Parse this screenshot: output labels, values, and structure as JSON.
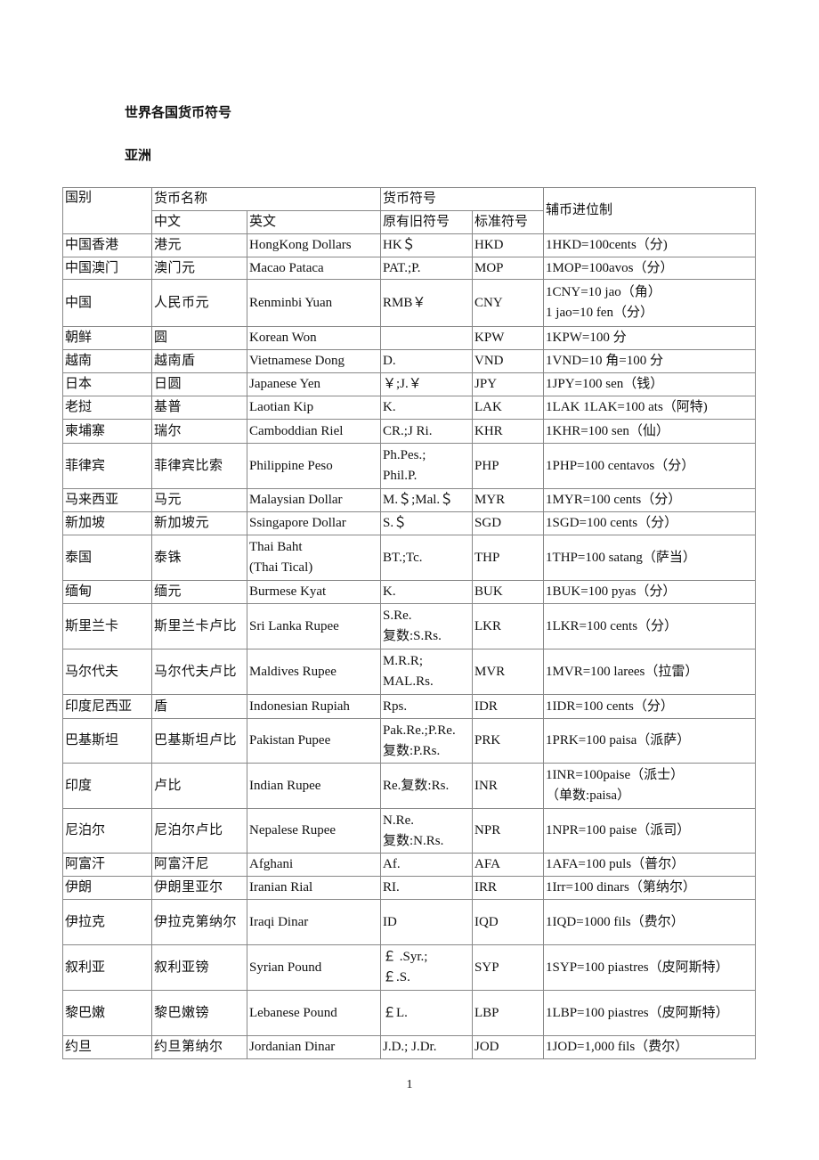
{
  "title": "世界各国货币符号",
  "section": "亚洲",
  "header": {
    "country": "国别",
    "name": "货币名称",
    "name_zh": "中文",
    "name_en": "英文",
    "symbol": "货币符号",
    "symbol_old": "原有旧符号",
    "symbol_std": "标准符号",
    "subunit": "辅币进位制"
  },
  "rows": [
    [
      "中国香港",
      "港元",
      "HongKong Dollars",
      "HK＄",
      "HKD",
      "1HKD=100cents（分)"
    ],
    [
      "中国澳门",
      "澳门元",
      "Macao Pataca",
      "PAT.;P.",
      "MOP",
      "1MOP=100avos（分）"
    ],
    [
      "中国",
      "人民币元",
      "Renminbi Yuan",
      "RMB￥",
      "CNY",
      "1CNY=10 jao（角）\n1 jao=10 fen（分）"
    ],
    [
      "朝鲜",
      "圆",
      "Korean Won",
      "",
      "KPW",
      "1KPW=100 分"
    ],
    [
      "越南",
      "越南盾",
      "Vietnamese Dong",
      "D.",
      "VND",
      "1VND=10 角=100 分"
    ],
    [
      "日本",
      "日圆",
      "Japanese Yen",
      "￥;J.￥",
      "JPY",
      "1JPY=100 sen（钱）"
    ],
    [
      "老挝",
      "基普",
      "Laotian Kip",
      "K.",
      "LAK",
      "1LAK 1LAK=100 ats（阿特)"
    ],
    [
      "柬埔寨",
      "瑞尔",
      "Camboddian Riel",
      "CR.;J Ri.",
      "KHR",
      "1KHR=100 sen（仙）"
    ],
    [
      "菲律宾",
      "菲律宾比索",
      "Philippine Peso",
      "Ph.Pes.;\nPhil.P.",
      "PHP",
      "1PHP=100 centavos（分）"
    ],
    [
      "马来西亚",
      "马元",
      "Malaysian Dollar",
      "M.＄;Mal.＄",
      "MYR",
      "1MYR=100 cents（分）"
    ],
    [
      "新加坡",
      "新加坡元",
      "Ssingapore Dollar",
      "S.＄",
      "SGD",
      "1SGD=100 cents（分）"
    ],
    [
      "泰国",
      "泰铢",
      "Thai Baht\n(Thai Tical)",
      "BT.;Tc.",
      "THP",
      "1THP=100 satang（萨当）"
    ],
    [
      "缅甸",
      "缅元",
      "Burmese Kyat",
      "K.",
      "BUK",
      "1BUK=100 pyas（分）"
    ],
    [
      "斯里兰卡",
      "斯里兰卡卢比",
      "Sri Lanka Rupee",
      "S.Re.\n复数:S.Rs.",
      "LKR",
      "1LKR=100 cents（分）"
    ],
    [
      "马尔代夫",
      "马尔代夫卢比",
      "Maldives Rupee",
      "M.R.R;\nMAL.Rs.",
      "MVR",
      "1MVR=100 larees（拉雷）"
    ],
    [
      "印度尼西亚",
      "盾",
      "Indonesian Rupiah",
      "Rps.",
      "IDR",
      "1IDR=100 cents（分）"
    ],
    [
      "巴基斯坦",
      "巴基斯坦卢比",
      "Pakistan Pupee",
      "Pak.Re.;P.Re.\n复数:P.Rs.",
      "PRK",
      "1PRK=100 paisa（派萨）"
    ],
    [
      "印度",
      "卢比",
      "Indian Rupee",
      "Re.复数:Rs.",
      "INR",
      "1INR=100paise（派士）\n（单数:paisa）"
    ],
    [
      "尼泊尔",
      "尼泊尔卢比",
      "Nepalese Rupee",
      "N.Re.\n复数:N.Rs.",
      "NPR",
      "1NPR=100 paise（派司）"
    ],
    [
      "阿富汗",
      "阿富汗尼",
      "Afghani",
      "Af.",
      "AFA",
      "1AFA=100 puls（普尔）"
    ],
    [
      "伊朗",
      "伊朗里亚尔",
      "Iranian Rial",
      "RI.",
      "IRR",
      "1Irr=100 dinars（第纳尔）"
    ],
    [
      "伊拉克",
      "伊拉克第纳尔",
      "Iraqi Dinar",
      "ID",
      "IQD",
      "1IQD=1000 fils（费尔）"
    ],
    [
      "叙利亚",
      "叙利亚镑",
      "Syrian Pound",
      "￡ .Syr.;\n￡.S.",
      "SYP",
      "1SYP=100 piastres（皮阿斯特）"
    ],
    [
      "黎巴嫩",
      "黎巴嫩镑",
      "Lebanese Pound",
      "￡L.",
      "LBP",
      "1LBP=100 piastres（皮阿斯特）"
    ],
    [
      "约旦",
      "约旦第纳尔",
      "Jordanian Dinar",
      "J.D.; J.Dr.",
      "JOD",
      "1JOD=1,000 fils（费尔）"
    ]
  ],
  "page_number": "1"
}
